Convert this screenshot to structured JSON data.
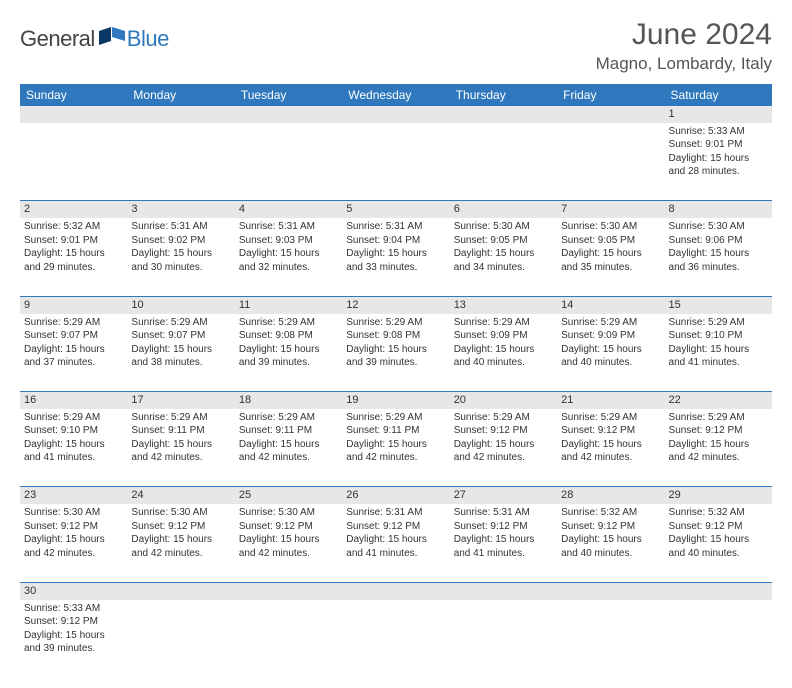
{
  "brand": {
    "name_a": "General",
    "name_b": "Blue",
    "flag_colors": [
      "#0b3766",
      "#2f78bd"
    ]
  },
  "title": "June 2024",
  "location": "Magno, Lombardy, Italy",
  "colors": {
    "header_bg": "#2f78bd",
    "header_fg": "#ffffff",
    "daynum_bg": "#e7e7e7",
    "rule": "#2f78bd"
  },
  "day_headers": [
    "Sunday",
    "Monday",
    "Tuesday",
    "Wednesday",
    "Thursday",
    "Friday",
    "Saturday"
  ],
  "weeks": [
    [
      null,
      null,
      null,
      null,
      null,
      null,
      {
        "n": "1",
        "sr": "5:33 AM",
        "ss": "9:01 PM",
        "dl": "15 hours and 28 minutes."
      }
    ],
    [
      {
        "n": "2",
        "sr": "5:32 AM",
        "ss": "9:01 PM",
        "dl": "15 hours and 29 minutes."
      },
      {
        "n": "3",
        "sr": "5:31 AM",
        "ss": "9:02 PM",
        "dl": "15 hours and 30 minutes."
      },
      {
        "n": "4",
        "sr": "5:31 AM",
        "ss": "9:03 PM",
        "dl": "15 hours and 32 minutes."
      },
      {
        "n": "5",
        "sr": "5:31 AM",
        "ss": "9:04 PM",
        "dl": "15 hours and 33 minutes."
      },
      {
        "n": "6",
        "sr": "5:30 AM",
        "ss": "9:05 PM",
        "dl": "15 hours and 34 minutes."
      },
      {
        "n": "7",
        "sr": "5:30 AM",
        "ss": "9:05 PM",
        "dl": "15 hours and 35 minutes."
      },
      {
        "n": "8",
        "sr": "5:30 AM",
        "ss": "9:06 PM",
        "dl": "15 hours and 36 minutes."
      }
    ],
    [
      {
        "n": "9",
        "sr": "5:29 AM",
        "ss": "9:07 PM",
        "dl": "15 hours and 37 minutes."
      },
      {
        "n": "10",
        "sr": "5:29 AM",
        "ss": "9:07 PM",
        "dl": "15 hours and 38 minutes."
      },
      {
        "n": "11",
        "sr": "5:29 AM",
        "ss": "9:08 PM",
        "dl": "15 hours and 39 minutes."
      },
      {
        "n": "12",
        "sr": "5:29 AM",
        "ss": "9:08 PM",
        "dl": "15 hours and 39 minutes."
      },
      {
        "n": "13",
        "sr": "5:29 AM",
        "ss": "9:09 PM",
        "dl": "15 hours and 40 minutes."
      },
      {
        "n": "14",
        "sr": "5:29 AM",
        "ss": "9:09 PM",
        "dl": "15 hours and 40 minutes."
      },
      {
        "n": "15",
        "sr": "5:29 AM",
        "ss": "9:10 PM",
        "dl": "15 hours and 41 minutes."
      }
    ],
    [
      {
        "n": "16",
        "sr": "5:29 AM",
        "ss": "9:10 PM",
        "dl": "15 hours and 41 minutes."
      },
      {
        "n": "17",
        "sr": "5:29 AM",
        "ss": "9:11 PM",
        "dl": "15 hours and 42 minutes."
      },
      {
        "n": "18",
        "sr": "5:29 AM",
        "ss": "9:11 PM",
        "dl": "15 hours and 42 minutes."
      },
      {
        "n": "19",
        "sr": "5:29 AM",
        "ss": "9:11 PM",
        "dl": "15 hours and 42 minutes."
      },
      {
        "n": "20",
        "sr": "5:29 AM",
        "ss": "9:12 PM",
        "dl": "15 hours and 42 minutes."
      },
      {
        "n": "21",
        "sr": "5:29 AM",
        "ss": "9:12 PM",
        "dl": "15 hours and 42 minutes."
      },
      {
        "n": "22",
        "sr": "5:29 AM",
        "ss": "9:12 PM",
        "dl": "15 hours and 42 minutes."
      }
    ],
    [
      {
        "n": "23",
        "sr": "5:30 AM",
        "ss": "9:12 PM",
        "dl": "15 hours and 42 minutes."
      },
      {
        "n": "24",
        "sr": "5:30 AM",
        "ss": "9:12 PM",
        "dl": "15 hours and 42 minutes."
      },
      {
        "n": "25",
        "sr": "5:30 AM",
        "ss": "9:12 PM",
        "dl": "15 hours and 42 minutes."
      },
      {
        "n": "26",
        "sr": "5:31 AM",
        "ss": "9:12 PM",
        "dl": "15 hours and 41 minutes."
      },
      {
        "n": "27",
        "sr": "5:31 AM",
        "ss": "9:12 PM",
        "dl": "15 hours and 41 minutes."
      },
      {
        "n": "28",
        "sr": "5:32 AM",
        "ss": "9:12 PM",
        "dl": "15 hours and 40 minutes."
      },
      {
        "n": "29",
        "sr": "5:32 AM",
        "ss": "9:12 PM",
        "dl": "15 hours and 40 minutes."
      }
    ],
    [
      {
        "n": "30",
        "sr": "5:33 AM",
        "ss": "9:12 PM",
        "dl": "15 hours and 39 minutes."
      },
      null,
      null,
      null,
      null,
      null,
      null
    ]
  ],
  "labels": {
    "sunrise": "Sunrise:",
    "sunset": "Sunset:",
    "daylight": "Daylight:"
  }
}
